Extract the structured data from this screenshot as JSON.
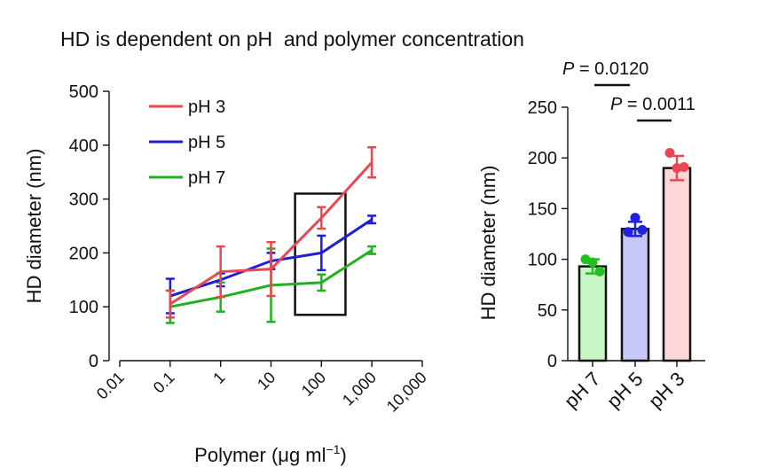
{
  "figure_title": "HD is dependent on pH  and polymer concentration",
  "chart_data": [
    {
      "type": "line",
      "title": "",
      "xlabel_base": "Polymer (μg ml",
      "xlabel_sup": "−1",
      "xlabel_close": ")",
      "ylabel": "HD diameter (nm)",
      "x_scale": "log",
      "xlim": [
        0.01,
        10000
      ],
      "ylim": [
        0,
        500
      ],
      "x_ticks": [
        0.01,
        0.1,
        1,
        10,
        100,
        1000,
        10000
      ],
      "x_tick_labels": [
        "0.01",
        "0.1",
        "1",
        "10",
        "100",
        "1,000",
        "10,000"
      ],
      "y_ticks": [
        0,
        100,
        200,
        300,
        400,
        500
      ],
      "y_tick_labels": [
        "0",
        "100",
        "200",
        "300",
        "400",
        "500"
      ],
      "legend_position": "top-left",
      "x": [
        0.1,
        1,
        10,
        100,
        1000
      ],
      "series": [
        {
          "name": "pH 3",
          "color": "#e8484f",
          "values": [
            105,
            165,
            170,
            265,
            368
          ],
          "err": [
            25,
            47,
            50,
            20,
            28
          ]
        },
        {
          "name": "pH 5",
          "color": "#1f1fd1",
          "values": [
            120,
            150,
            185,
            200,
            262
          ],
          "err": [
            32,
            12,
            15,
            32,
            7
          ]
        },
        {
          "name": "pH 7",
          "color": "#21b021",
          "values": [
            100,
            118,
            140,
            145,
            205
          ],
          "err": [
            30,
            27,
            68,
            15,
            7
          ]
        }
      ],
      "highlight_box_x": [
        30,
        300
      ],
      "highlight_box_y": [
        85,
        310
      ]
    },
    {
      "type": "bar",
      "title": "",
      "ylabel": "HD diameter (nm)",
      "ylim": [
        0,
        250
      ],
      "y_ticks": [
        0,
        50,
        100,
        150,
        200,
        250
      ],
      "y_tick_labels": [
        "0",
        "50",
        "100",
        "150",
        "200",
        "250"
      ],
      "categories": [
        "pH 7",
        "pH 5",
        "pH 3"
      ],
      "values": [
        93,
        130,
        190
      ],
      "err": [
        7,
        7,
        12
      ],
      "fill_colors": [
        "#c6f5c6",
        "#c6c6f8",
        "#fcd7d7"
      ],
      "point_colors": [
        "#21c021",
        "#2020e0",
        "#e8484f"
      ],
      "points": [
        [
          100,
          97,
          88
        ],
        [
          127,
          141,
          129
        ],
        [
          205,
          190,
          191
        ]
      ],
      "significance": [
        {
          "label_prefix": "P",
          "label_value": " = 0.0120",
          "between": [
            0,
            1
          ]
        },
        {
          "label_prefix": "P",
          "label_value": " = 0.0011",
          "between": [
            1,
            2
          ]
        }
      ]
    }
  ]
}
